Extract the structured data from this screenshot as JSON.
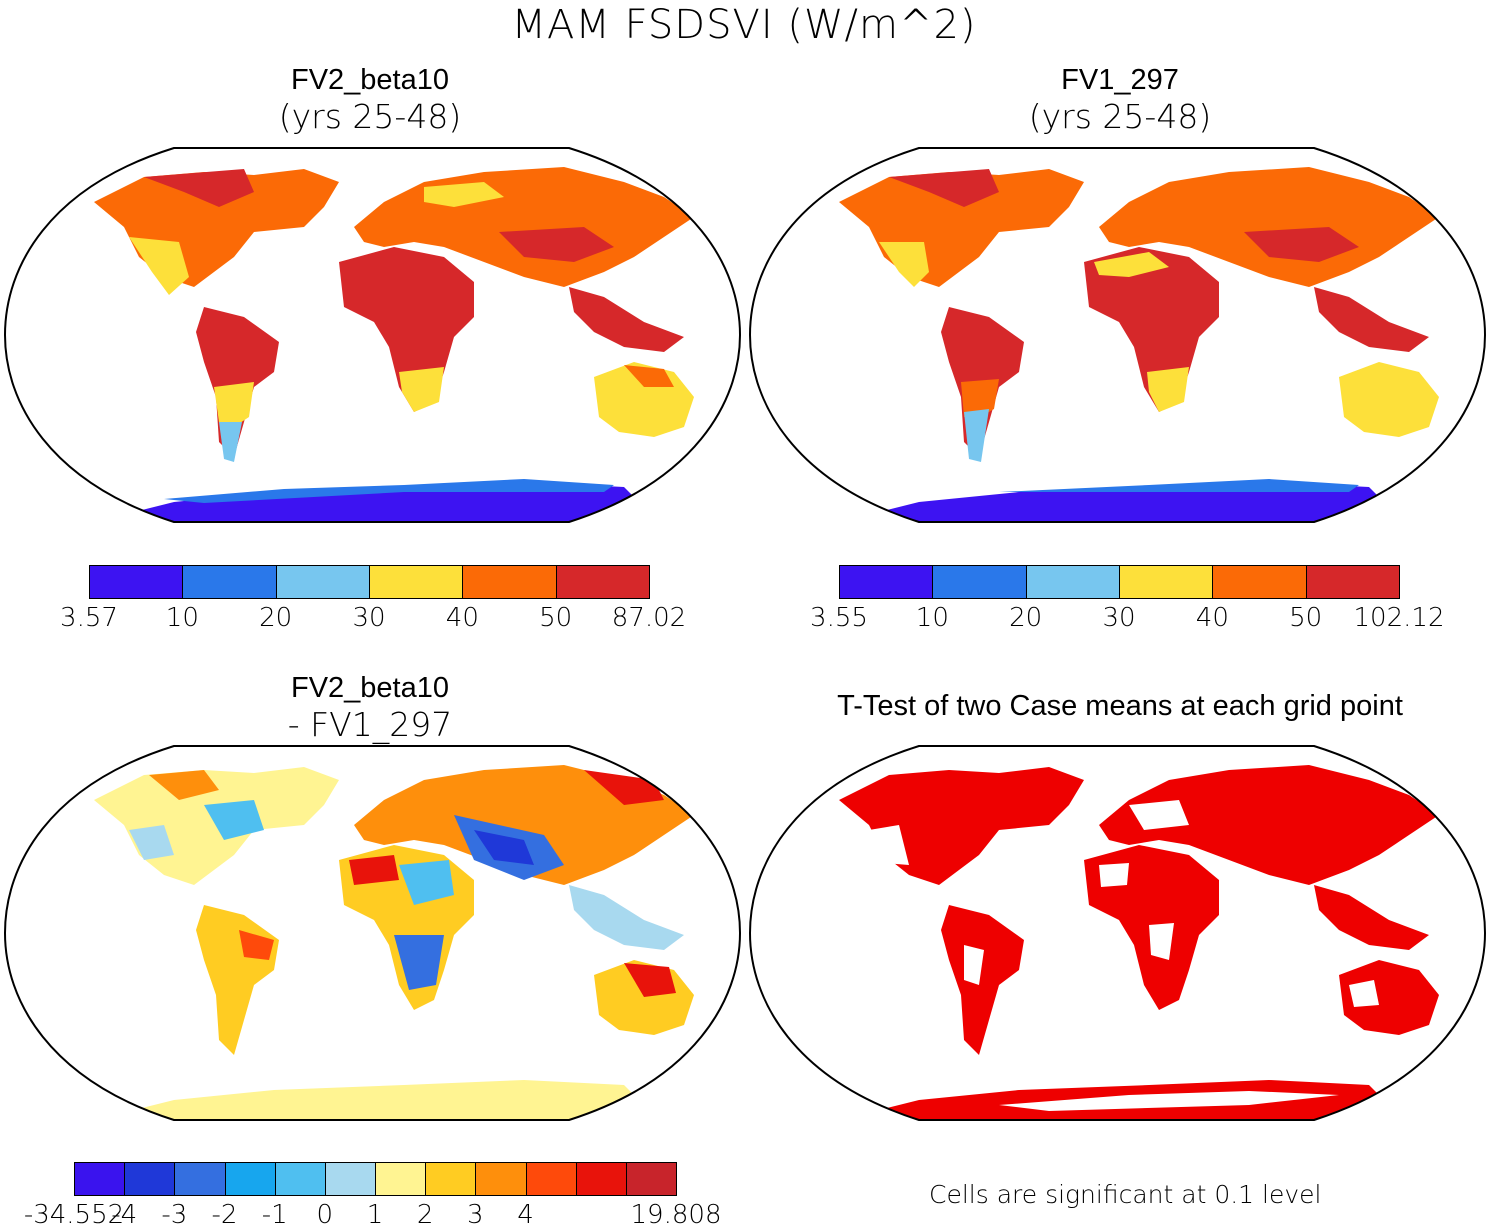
{
  "title": "MAM FSDSVI (W/m^2)",
  "panels": [
    {
      "title": "FV2_beta10",
      "subtitle": "(yrs 25-48)",
      "colorbar": {
        "ticks": [
          "3.57",
          "10",
          "20",
          "30",
          "40",
          "50",
          "87.02"
        ],
        "colors": [
          "#3d13f2",
          "#2a78ea",
          "#77c6ef",
          "#fde03a",
          "#fb6a06",
          "#d6282a"
        ]
      }
    },
    {
      "title": "FV1_297",
      "subtitle": "(yrs 25-48)",
      "colorbar": {
        "ticks": [
          "3.55",
          "10",
          "20",
          "30",
          "40",
          "50",
          "102.12"
        ],
        "colors": [
          "#3d13f2",
          "#2a78ea",
          "#77c6ef",
          "#fde03a",
          "#fb6a06",
          "#d6282a"
        ]
      }
    },
    {
      "title": "FV2_beta10",
      "subtitle": "- FV1_297",
      "colorbar": {
        "ticks": [
          "-34.552",
          "-4",
          "-3",
          "-2",
          "-1",
          "0",
          "1",
          "2",
          "3",
          "4",
          "19.808"
        ],
        "colors": [
          "#3a13ee",
          "#1f38d8",
          "#346fe0",
          "#17a6ee",
          "#4fbff0",
          "#a8d9ef",
          "#fff492",
          "#ffcc22",
          "#fe8f0c",
          "#fe4a0b",
          "#e8130b",
          "#c8242b"
        ]
      }
    },
    {
      "title": "T-Test of two Case means at each grid point",
      "note": "Cells are significant at 0.1 level",
      "color": "#ee0000"
    }
  ]
}
